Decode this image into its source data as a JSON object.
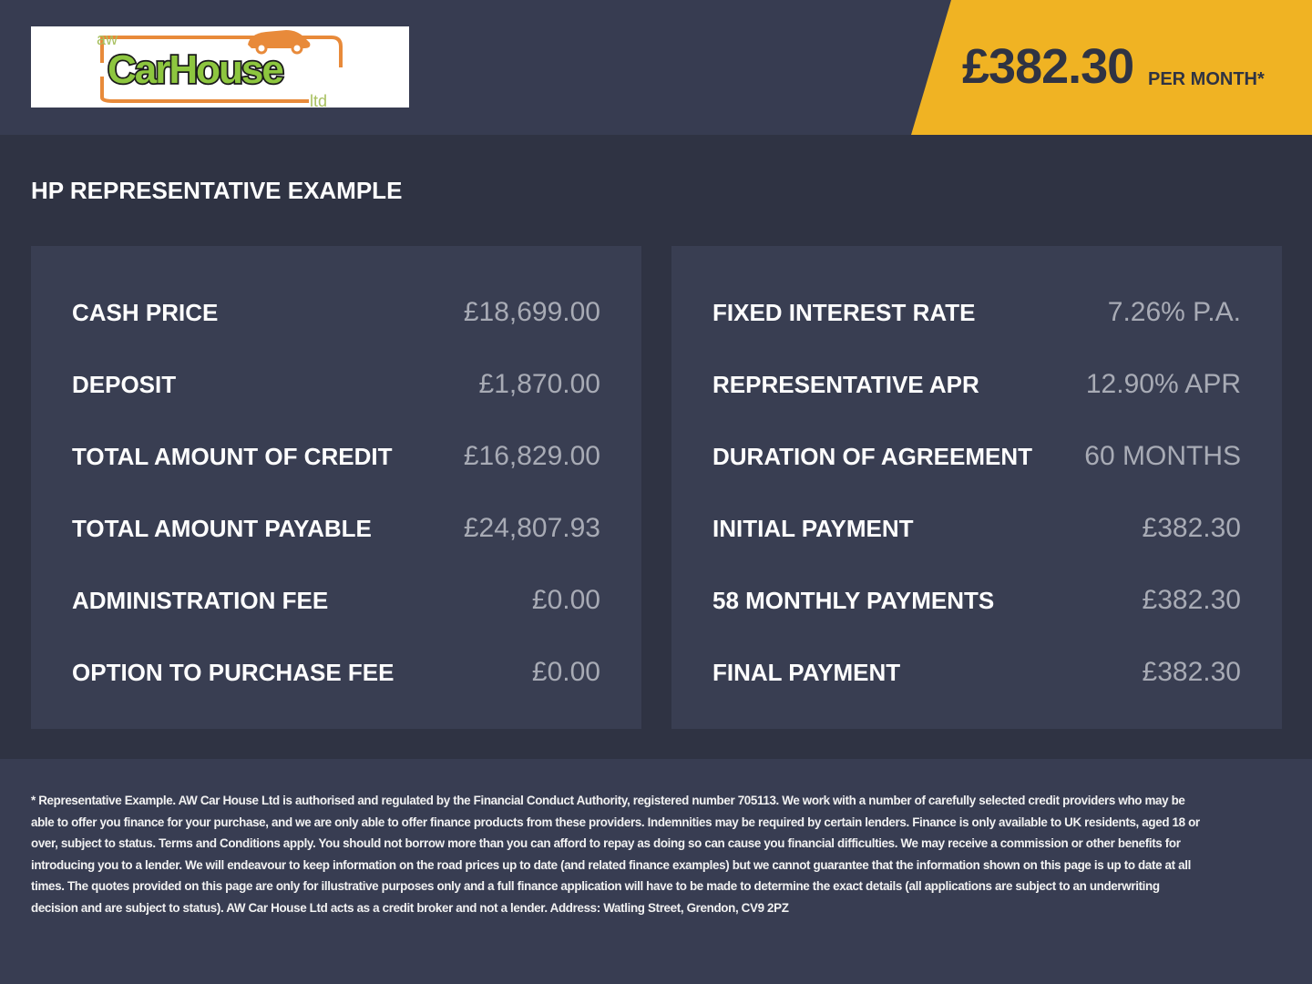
{
  "header": {
    "logo_text": "aw CarHouse ltd",
    "price": "£382.30",
    "price_suffix": "PER MONTH*",
    "accent_color": "#f0b323"
  },
  "section_title": "HP REPRESENTATIVE EXAMPLE",
  "left_panel": [
    {
      "label": "CASH PRICE",
      "value": "£18,699.00"
    },
    {
      "label": "DEPOSIT",
      "value": "£1,870.00"
    },
    {
      "label": "TOTAL AMOUNT OF CREDIT",
      "value": "£16,829.00"
    },
    {
      "label": "TOTAL AMOUNT PAYABLE",
      "value": "£24,807.93"
    },
    {
      "label": "ADMINISTRATION FEE",
      "value": "£0.00"
    },
    {
      "label": "OPTION TO PURCHASE FEE",
      "value": "£0.00"
    }
  ],
  "right_panel": [
    {
      "label": "FIXED INTEREST RATE",
      "value": "7.26% P.A."
    },
    {
      "label": "REPRESENTATIVE APR",
      "value": "12.90% APR"
    },
    {
      "label": "DURATION OF AGREEMENT",
      "value": "60 MONTHS"
    },
    {
      "label": "INITIAL PAYMENT",
      "value": "£382.30"
    },
    {
      "label": "58 MONTHLY PAYMENTS",
      "value": "£382.30"
    },
    {
      "label": "FINAL PAYMENT",
      "value": "£382.30"
    }
  ],
  "footer_text": "* Representative Example. AW Car House Ltd is authorised and regulated by the Financial Conduct Authority, registered number 705113. We work with a number of carefully selected credit providers who may be able to offer you finance for your purchase, and we are only able to offer finance products from these providers. Indemnities may be required by certain lenders. Finance is only available to UK residents, aged 18 or over, subject to status. Terms and Conditions apply. You should not borrow more than you can afford to repay as doing so can cause you financial difficulties. We may receive a commission or other benefits for introducing you to a lender. We will endeavour to keep information on the road prices up to date (and related finance examples) but we cannot guarantee that the information shown on this page is up to date at all times. The quotes provided on this page are only for illustrative purposes only and a full finance application will have to be made to determine the exact details (all applications are subject to an underwriting decision and are subject to status). AW Car House Ltd acts as a credit broker and not a lender. Address: Watling Street, Grendon, CV9 2PZ"
}
